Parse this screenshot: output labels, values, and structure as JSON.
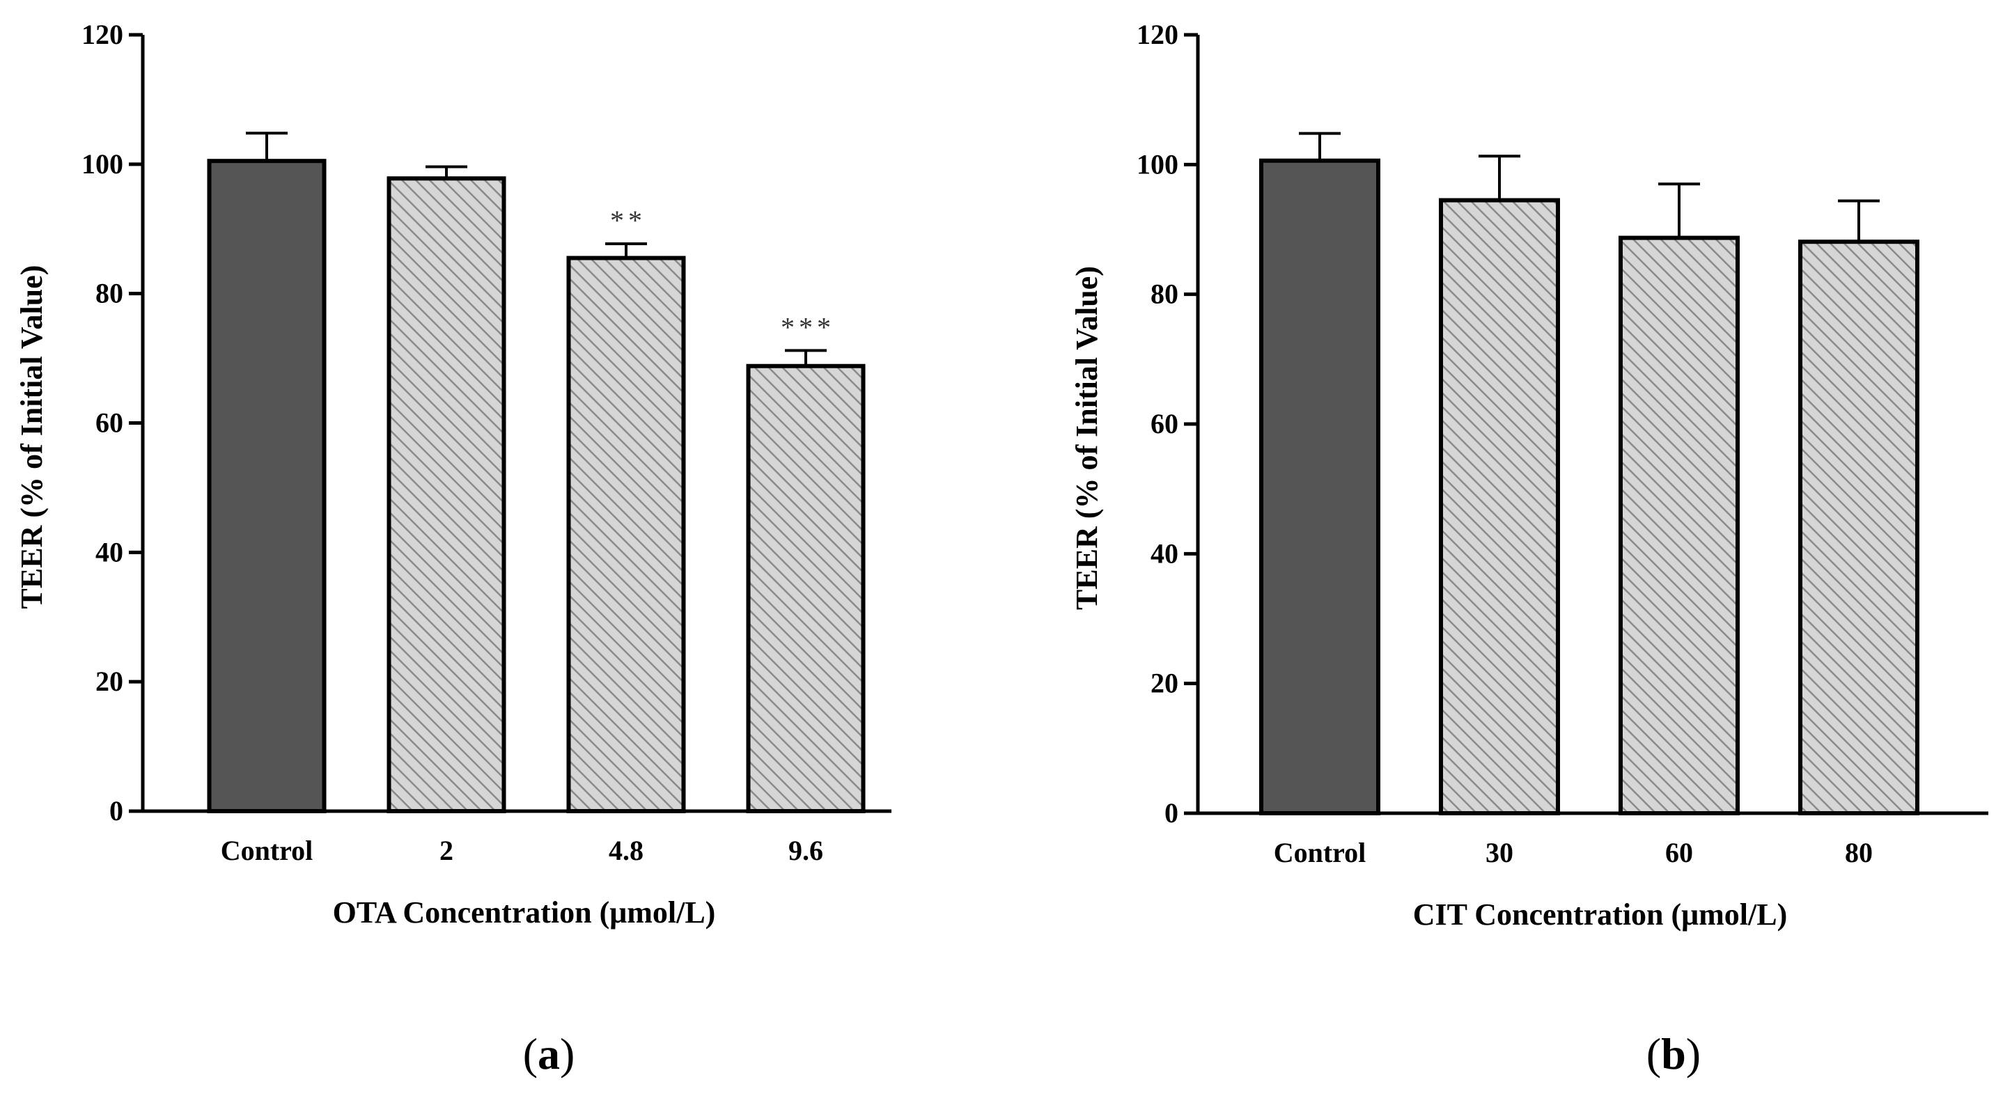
{
  "chart_data": [
    {
      "type": "bar",
      "panel": "a",
      "xlabel": "OTA Concentration (μmol/L)",
      "ylabel": "TEER (% of Initial Value)",
      "ylim": [
        0,
        120
      ],
      "yticks": [
        0,
        20,
        40,
        60,
        80,
        100,
        120
      ],
      "categories": [
        "Control",
        "2",
        "4.8",
        "9.6"
      ],
      "values": [
        100.5,
        97.8,
        85.5,
        68.8
      ],
      "errors": [
        4.3,
        1.8,
        2.2,
        2.4
      ],
      "significance": [
        "",
        "",
        "**",
        "***"
      ],
      "bar_styles": [
        "solid",
        "hatched",
        "hatched",
        "hatched"
      ],
      "colors": {
        "solid": "#555555",
        "hatched_bg": "#d6d6d6",
        "hatch": "#8a8a8a",
        "stroke": "#000000"
      }
    },
    {
      "type": "bar",
      "panel": "b",
      "xlabel": "CIT Concentration (μmol/L)",
      "ylabel": "TEER (% of Initial Value)",
      "ylim": [
        0,
        120
      ],
      "yticks": [
        0,
        20,
        40,
        60,
        80,
        100,
        120
      ],
      "categories": [
        "Control",
        "30",
        "60",
        "80"
      ],
      "values": [
        100.6,
        94.5,
        88.7,
        88.1
      ],
      "errors": [
        4.2,
        6.8,
        8.3,
        6.3
      ],
      "significance": [
        "",
        "",
        "",
        ""
      ],
      "bar_styles": [
        "solid",
        "hatched",
        "hatched",
        "hatched"
      ],
      "colors": {
        "solid": "#555555",
        "hatched_bg": "#d6d6d6",
        "hatch": "#8a8a8a",
        "stroke": "#000000"
      }
    }
  ],
  "panel_labels": {
    "a": {
      "open": "(",
      "letter": "a",
      "close": ")"
    },
    "b": {
      "open": "(",
      "letter": "b",
      "close": ")"
    }
  }
}
